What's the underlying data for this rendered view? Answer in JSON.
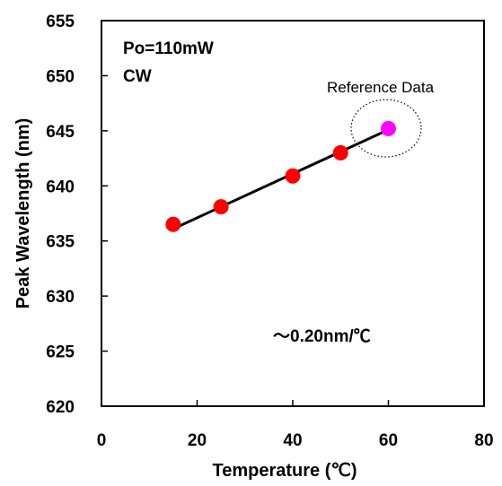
{
  "chart_data": {
    "type": "scatter",
    "xlabel": "Temperature (℃)",
    "ylabel": "Peak Wavelength (nm)",
    "xlim": [
      0,
      80
    ],
    "ylim": [
      620,
      655
    ],
    "xticks": [
      "0",
      "20",
      "40",
      "60",
      "80"
    ],
    "yticks": [
      "620",
      "625",
      "630",
      "635",
      "640",
      "645",
      "650",
      "655"
    ],
    "grid": false,
    "annotations": [
      "Po=110mW",
      "CW",
      "～0.20nm/℃",
      "Reference Data"
    ],
    "series": [
      {
        "x": [
          15,
          25,
          40,
          50
        ],
        "y": [
          636.5,
          638.1,
          640.9,
          643.0
        ],
        "color": "#ff0000"
      },
      {
        "x": [
          60
        ],
        "y": [
          645.2
        ],
        "color": "#ff00ff"
      }
    ],
    "fit_line": {
      "x": [
        15,
        60
      ],
      "y": [
        636.1,
        645.1
      ],
      "color": "#000000"
    }
  }
}
